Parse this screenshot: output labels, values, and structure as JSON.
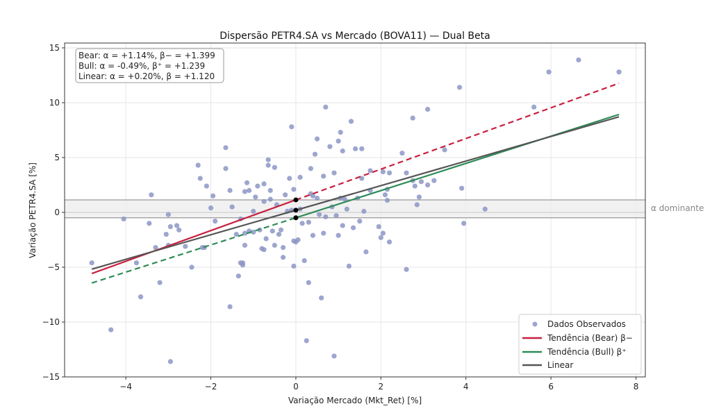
{
  "chart_data": {
    "type": "scatter",
    "title": "Dispersão PETR4.SA vs Mercado (BOVA11) — Dual Beta",
    "xlabel": "Variação Mercado (Mkt_Ret) [%]",
    "ylabel": "Variação PETR4.SA [%]",
    "xlim": [
      -5.44,
      8.22
    ],
    "ylim": [
      -15,
      15.44
    ],
    "xticks": [
      -4,
      -2,
      0,
      2,
      4,
      6,
      8
    ],
    "xtick_labels": [
      "−4",
      "−2",
      "0",
      "2",
      "4",
      "6",
      "8"
    ],
    "yticks": [
      -15,
      -10,
      -5,
      0,
      5,
      10,
      15
    ],
    "ytick_labels": [
      "−15",
      "−10",
      "−5",
      "0",
      "5",
      "10",
      "15"
    ],
    "grid": true,
    "annotation_lines": [
      "Bear: α = +1.14%, β− = +1.399",
      "Bull: α = -0.49%, β⁺ = +1.239",
      "Linear: α = +0.20%, β = +1.120"
    ],
    "alpha_band": {
      "label": "α dominante",
      "from": -0.49,
      "to": 1.14
    },
    "intercept_points": [
      1.14,
      0.2,
      -0.49
    ],
    "legend": {
      "position": "lower-right",
      "entries": [
        "Dados Observados",
        "Tendência (Bear) β−",
        "Tendência (Bull) β⁺",
        "Linear"
      ]
    },
    "colors": {
      "scatter": "#8c96c6",
      "bear": "#c8203f",
      "bull": "#2e8b57",
      "linear": "#555555",
      "band": "#eeeeee",
      "band_edge": "#999999"
    },
    "lines": [
      {
        "name": "Tendência (Bear) β−",
        "alpha": 1.14,
        "beta": 1.399,
        "x_range": [
          -4.8,
          7.6
        ],
        "solid_side": "negative"
      },
      {
        "name": "Tendência (Bull) β⁺",
        "alpha": -0.49,
        "beta": 1.239,
        "x_range": [
          -4.8,
          7.6
        ],
        "solid_side": "positive"
      },
      {
        "name": "Linear",
        "alpha": 0.2,
        "beta": 1.12,
        "x_range": [
          -4.8,
          7.6
        ],
        "solid_side": "both"
      }
    ],
    "series": [
      {
        "name": "Dados Observados",
        "points": [
          [
            -4.8,
            -4.6
          ],
          [
            -4.35,
            -10.7
          ],
          [
            -4.05,
            -0.6
          ],
          [
            -3.75,
            -4.6
          ],
          [
            -3.65,
            -7.7
          ],
          [
            -3.4,
            1.6
          ],
          [
            -3.45,
            -1.0
          ],
          [
            -3.3,
            -3.2
          ],
          [
            -3.2,
            -6.4
          ],
          [
            -3.05,
            -2.0
          ],
          [
            -3.0,
            -3.0
          ],
          [
            -3.0,
            -0.2
          ],
          [
            -2.95,
            -13.6
          ],
          [
            -2.95,
            -1.3
          ],
          [
            -2.8,
            -1.2
          ],
          [
            -2.75,
            -1.6
          ],
          [
            -2.6,
            -3.1
          ],
          [
            -2.45,
            -5.0
          ],
          [
            -2.3,
            4.3
          ],
          [
            -2.25,
            3.1
          ],
          [
            -2.2,
            -3.2
          ],
          [
            -2.15,
            -3.2
          ],
          [
            -2.1,
            2.4
          ],
          [
            -2.0,
            0.4
          ],
          [
            -1.95,
            1.5
          ],
          [
            -1.9,
            -0.8
          ],
          [
            -1.65,
            5.9
          ],
          [
            -1.65,
            4.0
          ],
          [
            -1.55,
            2.0
          ],
          [
            -1.55,
            -8.6
          ],
          [
            -1.5,
            0.5
          ],
          [
            -1.4,
            -2.0
          ],
          [
            -1.35,
            -5.8
          ],
          [
            -1.3,
            -0.6
          ],
          [
            -1.3,
            -4.6
          ],
          [
            -1.25,
            -4.8
          ],
          [
            -1.25,
            -4.6
          ],
          [
            -1.2,
            -1.9
          ],
          [
            -1.2,
            -3.0
          ],
          [
            -1.2,
            1.9
          ],
          [
            -1.15,
            2.7
          ],
          [
            -1.1,
            2.0
          ],
          [
            -1.1,
            -1.7
          ],
          [
            -1.0,
            -1.8
          ],
          [
            -1.0,
            0.1
          ],
          [
            -0.95,
            1.4
          ],
          [
            -0.9,
            2.4
          ],
          [
            -0.85,
            -1.6
          ],
          [
            -0.8,
            -3.3
          ],
          [
            -0.75,
            -3.4
          ],
          [
            -0.75,
            2.6
          ],
          [
            -0.75,
            1.0
          ],
          [
            -0.7,
            -2.4
          ],
          [
            -0.65,
            4.8
          ],
          [
            -0.65,
            4.3
          ],
          [
            -0.6,
            2.0
          ],
          [
            -0.6,
            1.2
          ],
          [
            -0.5,
            -3.0
          ],
          [
            -0.55,
            -1.7
          ],
          [
            -0.5,
            4.1
          ],
          [
            -0.45,
            0.7
          ],
          [
            -0.4,
            -2.0
          ],
          [
            -0.35,
            -1.6
          ],
          [
            -0.3,
            -3.2
          ],
          [
            -0.3,
            -4.1
          ],
          [
            -0.25,
            1.6
          ],
          [
            -0.2,
            0.1
          ],
          [
            -0.15,
            3.1
          ],
          [
            -0.1,
            7.8
          ],
          [
            -0.1,
            0.2
          ],
          [
            -0.05,
            2.1
          ],
          [
            -0.05,
            -2.6
          ],
          [
            -0.05,
            -4.9
          ],
          [
            0.0,
            -2.7
          ],
          [
            0.05,
            -2.5
          ],
          [
            0.1,
            0.3
          ],
          [
            0.1,
            3.2
          ],
          [
            0.15,
            -1.0
          ],
          [
            0.2,
            -4.4
          ],
          [
            0.25,
            -11.7
          ],
          [
            0.3,
            -6.4
          ],
          [
            0.3,
            -0.9
          ],
          [
            0.35,
            4.0
          ],
          [
            0.35,
            1.7
          ],
          [
            0.4,
            1.5
          ],
          [
            0.4,
            -2.1
          ],
          [
            0.45,
            5.3
          ],
          [
            0.5,
            6.7
          ],
          [
            0.5,
            1.3
          ],
          [
            0.55,
            -0.2
          ],
          [
            0.6,
            -7.8
          ],
          [
            0.65,
            3.3
          ],
          [
            0.65,
            -1.9
          ],
          [
            0.7,
            -0.4
          ],
          [
            0.7,
            9.6
          ],
          [
            0.8,
            6.0
          ],
          [
            0.85,
            0.5
          ],
          [
            0.9,
            -13.1
          ],
          [
            0.9,
            3.6
          ],
          [
            0.95,
            -0.3
          ],
          [
            1.0,
            6.5
          ],
          [
            1.0,
            -2.1
          ],
          [
            1.05,
            7.3
          ],
          [
            1.05,
            1.3
          ],
          [
            1.1,
            5.6
          ],
          [
            1.1,
            -1.2
          ],
          [
            1.15,
            1.2
          ],
          [
            1.2,
            0.3
          ],
          [
            1.25,
            -4.9
          ],
          [
            1.3,
            8.3
          ],
          [
            1.35,
            -1.4
          ],
          [
            1.4,
            5.8
          ],
          [
            1.45,
            1.3
          ],
          [
            1.5,
            -0.8
          ],
          [
            1.55,
            5.8
          ],
          [
            1.55,
            3.1
          ],
          [
            1.6,
            0.1
          ],
          [
            1.65,
            -3.6
          ],
          [
            1.75,
            2.0
          ],
          [
            1.75,
            3.8
          ],
          [
            1.95,
            -1.3
          ],
          [
            2.0,
            -2.3
          ],
          [
            2.05,
            -1.9
          ],
          [
            2.05,
            3.7
          ],
          [
            2.1,
            1.6
          ],
          [
            2.15,
            2.1
          ],
          [
            2.15,
            1.1
          ],
          [
            2.2,
            -2.7
          ],
          [
            2.2,
            3.6
          ],
          [
            2.5,
            5.4
          ],
          [
            2.6,
            3.6
          ],
          [
            2.6,
            -5.2
          ],
          [
            2.75,
            8.6
          ],
          [
            2.75,
            2.9
          ],
          [
            2.8,
            2.4
          ],
          [
            2.85,
            0.7
          ],
          [
            2.9,
            1.4
          ],
          [
            2.95,
            2.8
          ],
          [
            3.1,
            9.4
          ],
          [
            3.1,
            2.5
          ],
          [
            3.25,
            2.9
          ],
          [
            3.5,
            5.7
          ],
          [
            3.85,
            11.4
          ],
          [
            3.9,
            2.2
          ],
          [
            3.95,
            -1.0
          ],
          [
            4.45,
            0.3
          ],
          [
            5.6,
            9.6
          ],
          [
            5.95,
            12.8
          ],
          [
            6.65,
            13.9
          ],
          [
            7.6,
            12.8
          ]
        ]
      }
    ]
  }
}
